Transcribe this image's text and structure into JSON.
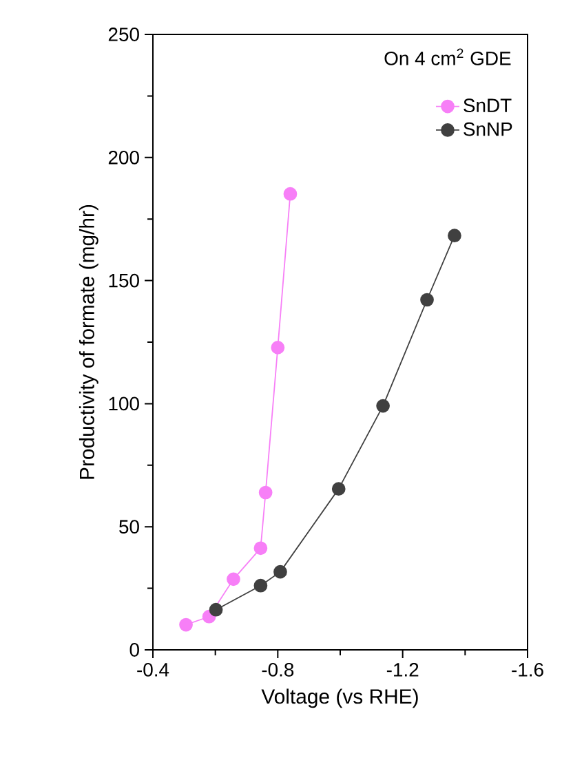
{
  "chart_data": {
    "type": "line",
    "xlabel": "Voltage (vs RHE)",
    "ylabel": "Productivity of formate (mg/hr)",
    "annotations": [
      "On 4 cm$^{2}$ GDE"
    ],
    "xlim": [
      -0.4,
      -1.6
    ],
    "xticks": [
      -0.4,
      -0.8,
      -1.2,
      -1.6
    ],
    "ylim": [
      0,
      250
    ],
    "yticks": [
      0,
      50,
      100,
      150,
      200,
      250
    ],
    "marker": "circle",
    "line_style": "solid",
    "legend": "top right",
    "grid": false,
    "series": [
      {
        "name": "SnDT",
        "color": "#f77ff7",
        "x": [
          -0.506,
          -0.58,
          -0.658,
          -0.745,
          -0.761,
          -0.8,
          -0.84
        ],
        "values": [
          10.2,
          13.5,
          28.7,
          41.3,
          63.9,
          122.8,
          185.2
        ]
      },
      {
        "name": "SnNP",
        "color": "#404040",
        "x": [
          -0.602,
          -0.745,
          -0.808,
          -0.995,
          -1.137,
          -1.278,
          -1.366
        ],
        "values": [
          16.3,
          26.1,
          31.7,
          65.4,
          99.1,
          142.2,
          168.3
        ]
      }
    ]
  }
}
